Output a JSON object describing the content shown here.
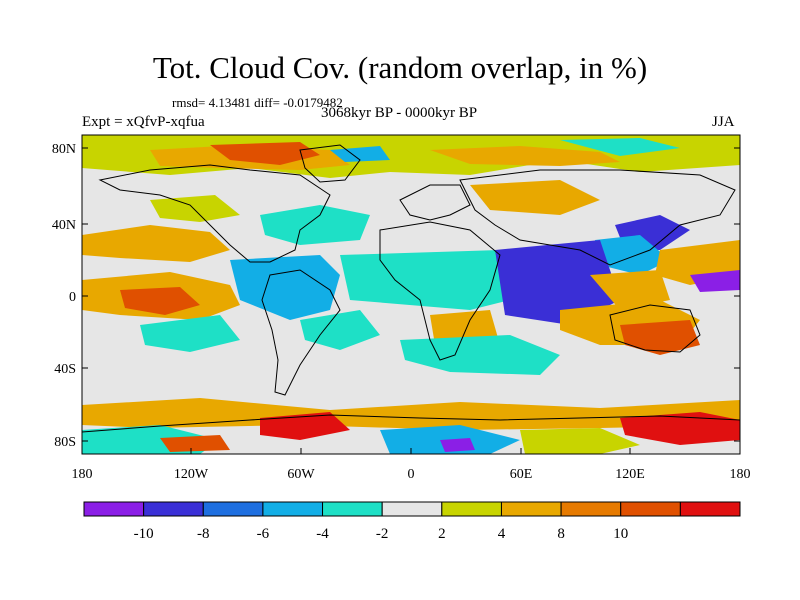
{
  "header": {
    "title": "Tot. Cloud Cov. (random overlap, in %)",
    "stats": "rmsd= 4.13481 diff= -0.0179482",
    "period": "3068kyr BP - 0000kyr BP",
    "experiment": "Expt = xQfvP-xqfua",
    "season": "JJA"
  },
  "axes": {
    "lat_ticks": [
      "80N",
      "40N",
      "0",
      "40S",
      "80S"
    ],
    "lon_ticks": [
      "180",
      "120W",
      "60W",
      "0",
      "60E",
      "120E",
      "180"
    ]
  },
  "colorbar": {
    "labels": [
      "-10",
      "-8",
      "-6",
      "-4",
      "-2",
      "2",
      "4",
      "8",
      "10"
    ],
    "colors": [
      "#8b1fe6",
      "#3a2fd6",
      "#1e6fe0",
      "#12aee6",
      "#1ee0c6",
      "#e6e6e6",
      "#c8d400",
      "#e8a800",
      "#e67a00",
      "#e05000",
      "#e01010"
    ]
  },
  "palette": {
    "background_gray": "#e6e6e6",
    "coastline": "#000000"
  }
}
